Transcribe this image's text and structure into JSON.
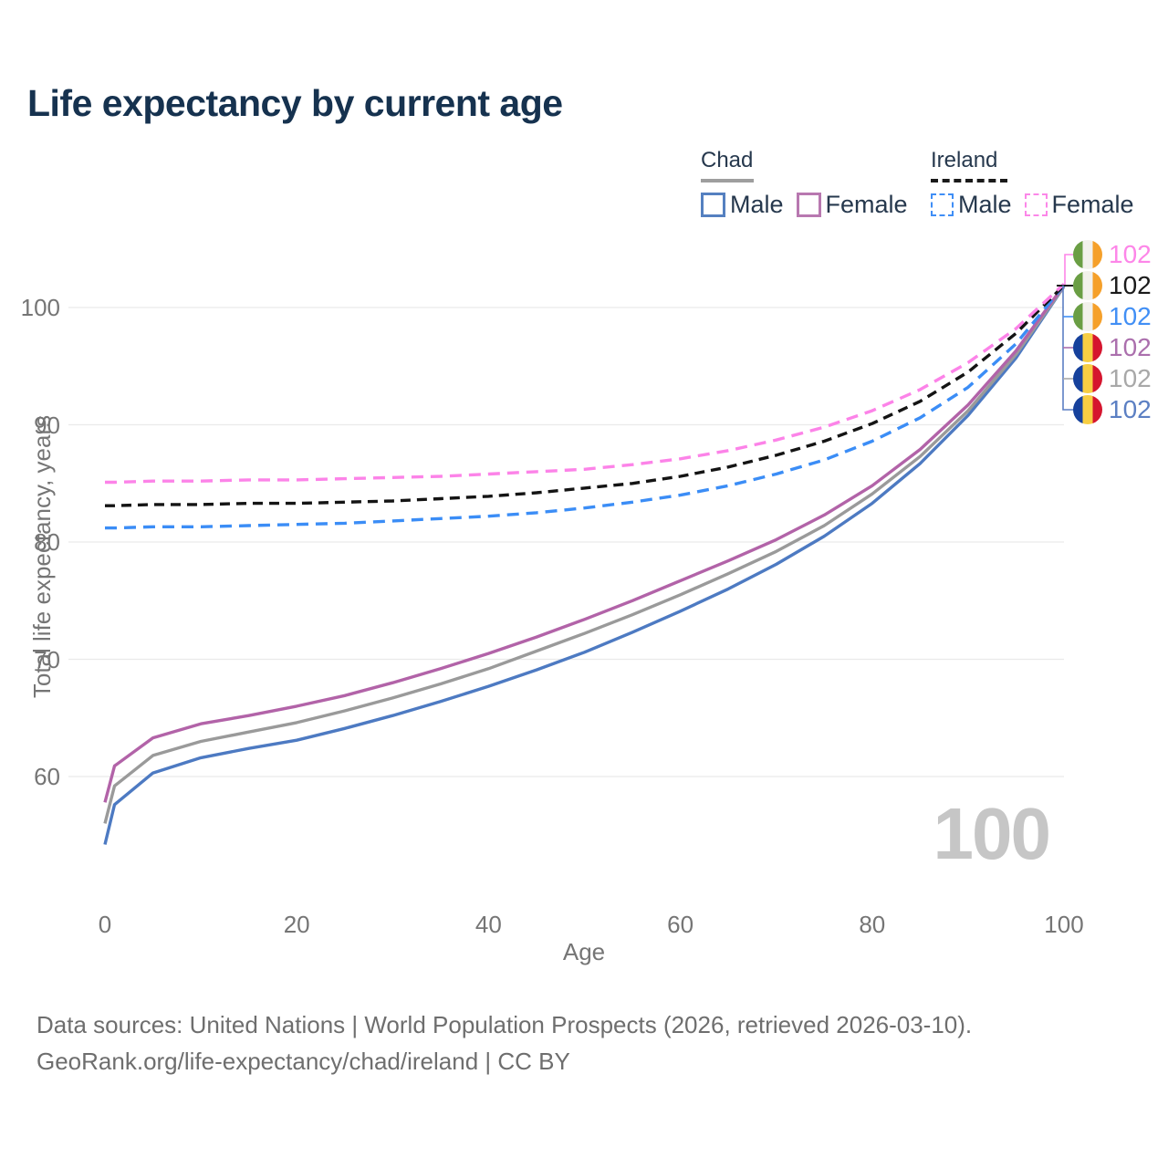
{
  "title": "Life expectancy by current age",
  "watermark": "100",
  "footer": {
    "line1": "Data sources: United Nations | World Population Prospects (2026, retrieved 2026-03-10).",
    "line2": "GeoRank.org/life-expectancy/chad/ireland | CC BY"
  },
  "legend": {
    "groups": [
      {
        "title": "Chad",
        "underline_color": "#9e9e9e",
        "underline_dash": false,
        "items": [
          {
            "label": "Male",
            "color": "#5580c0",
            "dash": false
          },
          {
            "label": "Female",
            "color": "#b878b0",
            "dash": false
          }
        ]
      },
      {
        "title": "Ireland",
        "underline_color": "#1a1a1a",
        "underline_dash": true,
        "items": [
          {
            "label": "Male",
            "color": "#3f8ef6",
            "dash": true
          },
          {
            "label": "Female",
            "color": "#fb87e8",
            "dash": true
          }
        ]
      }
    ]
  },
  "chart_data": {
    "type": "line",
    "title": "Life expectancy by current age",
    "xlabel": "Age",
    "ylabel": "Total life expectancy, years",
    "x_ticks": [
      0,
      20,
      40,
      60,
      80,
      100
    ],
    "y_ticks": [
      100,
      90,
      80,
      70,
      60
    ],
    "xlim": [
      0,
      100
    ],
    "grid": "horizontal-only",
    "legend_position": "top-right",
    "ages": [
      0,
      1,
      5,
      10,
      15,
      20,
      25,
      30,
      35,
      40,
      45,
      50,
      55,
      60,
      65,
      70,
      75,
      80,
      85,
      90,
      95,
      100
    ],
    "series": [
      {
        "id": "chad-male",
        "name": "Chad Male",
        "country": "Chad",
        "color": "#4d7ac2",
        "dash": false,
        "values": [
          54.2,
          57.6,
          60.3,
          61.6,
          62.4,
          63.1,
          64.1,
          65.2,
          66.4,
          67.7,
          69.1,
          70.6,
          72.3,
          74.1,
          76.0,
          78.1,
          80.5,
          83.3,
          86.7,
          90.8,
          95.7,
          101.8
        ]
      },
      {
        "id": "chad-total",
        "name": "Chad",
        "country": "Chad",
        "color": "#9a9a9a",
        "dash": false,
        "values": [
          56.0,
          59.2,
          61.8,
          63.0,
          63.8,
          64.6,
          65.6,
          66.7,
          67.9,
          69.2,
          70.7,
          72.2,
          73.8,
          75.5,
          77.3,
          79.2,
          81.4,
          84.1,
          87.3,
          91.2,
          96.0,
          101.8
        ]
      },
      {
        "id": "chad-female",
        "name": "Chad Female",
        "country": "Chad",
        "color": "#b263a8",
        "dash": false,
        "values": [
          57.8,
          60.9,
          63.3,
          64.5,
          65.2,
          66.0,
          66.9,
          68.0,
          69.2,
          70.5,
          71.9,
          73.4,
          75.0,
          76.7,
          78.4,
          80.2,
          82.3,
          84.8,
          87.9,
          91.7,
          96.3,
          101.9
        ]
      },
      {
        "id": "ireland-male",
        "name": "Ireland Male",
        "country": "Ireland",
        "color": "#3b8df6",
        "dash": true,
        "values": [
          81.2,
          81.2,
          81.3,
          81.3,
          81.4,
          81.5,
          81.6,
          81.8,
          82.0,
          82.2,
          82.5,
          82.9,
          83.4,
          84.0,
          84.8,
          85.8,
          87.0,
          88.6,
          90.6,
          93.2,
          96.9,
          101.9
        ]
      },
      {
        "id": "ireland-total",
        "name": "Ireland",
        "country": "Ireland",
        "color": "#141414",
        "dash": true,
        "values": [
          83.1,
          83.1,
          83.2,
          83.2,
          83.3,
          83.3,
          83.4,
          83.5,
          83.7,
          83.9,
          84.2,
          84.6,
          85.0,
          85.6,
          86.4,
          87.4,
          88.6,
          90.1,
          92.0,
          94.5,
          97.8,
          101.9
        ]
      },
      {
        "id": "ireland-female",
        "name": "Ireland Female",
        "country": "Ireland",
        "color": "#fc83e8",
        "dash": true,
        "values": [
          85.1,
          85.1,
          85.2,
          85.2,
          85.3,
          85.3,
          85.4,
          85.5,
          85.6,
          85.8,
          86.0,
          86.2,
          86.6,
          87.1,
          87.8,
          88.7,
          89.8,
          91.2,
          93.0,
          95.3,
          98.2,
          102.0
        ]
      }
    ],
    "end_labels": [
      {
        "series": "Ireland Female",
        "flag": "ireland",
        "value": "102",
        "color": "#fd86e8"
      },
      {
        "series": "Ireland",
        "flag": "ireland",
        "value": "102",
        "color": "#1a1a1a"
      },
      {
        "series": "Ireland Male",
        "flag": "ireland",
        "value": "102",
        "color": "#418ff5"
      },
      {
        "series": "Chad Female",
        "flag": "chad",
        "value": "102",
        "color": "#ab6fad"
      },
      {
        "series": "Chad",
        "flag": "chad",
        "value": "102",
        "color": "#a8a8a8"
      },
      {
        "series": "Chad Male",
        "flag": "chad",
        "value": "102",
        "color": "#5b7fc3"
      }
    ],
    "flags": {
      "ireland": [
        "#6a9e44",
        "#f2f1ec",
        "#f5a02a"
      ],
      "chad": [
        "#16419c",
        "#f7ce43",
        "#d5152e"
      ]
    }
  }
}
